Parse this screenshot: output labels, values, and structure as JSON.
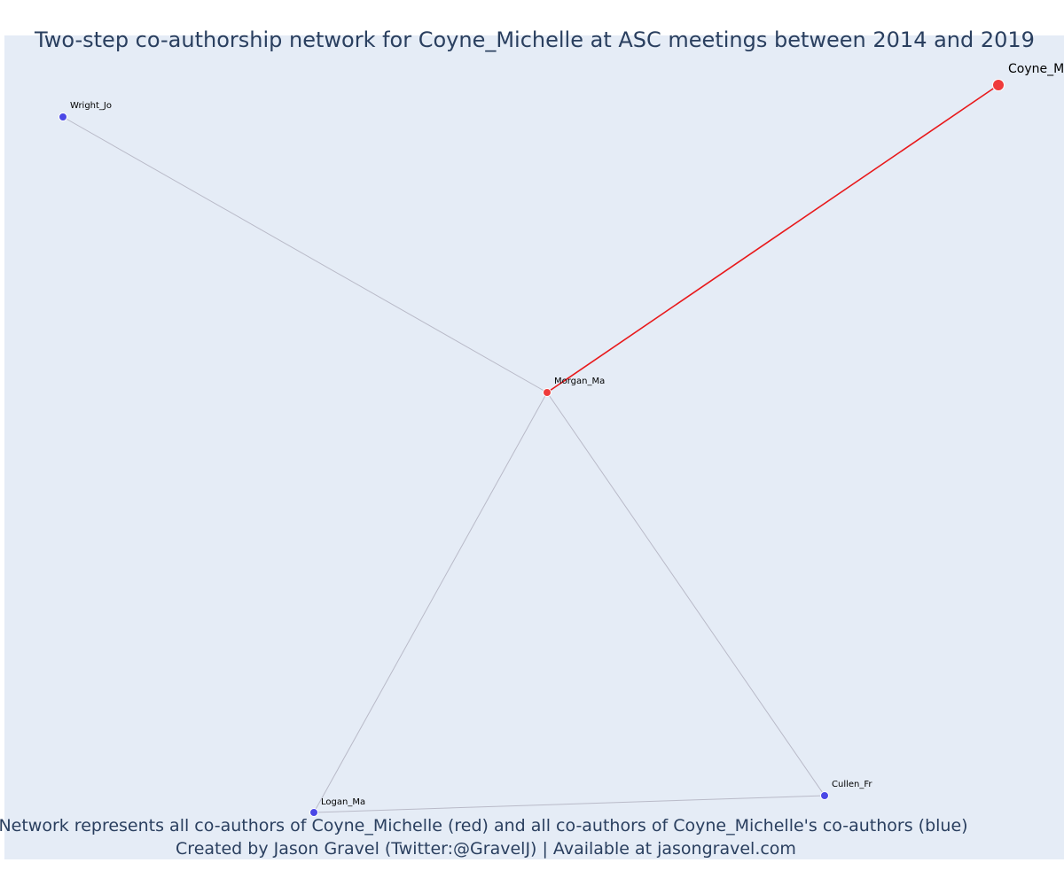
{
  "title": "Two-step co-authorship network for Coyne_Michelle at ASC meetings between 2014 and 2019",
  "caption_line1": "Network represents all co-authors of Coyne_Michelle (red) and all co-authors of Coyne_Michelle's co-authors (blue)",
  "caption_line2": "Created by Jason Gravel (Twitter:@GravelJ) | Available at jasongravel.com",
  "colors": {
    "background": "#e5ecf6",
    "title": "#2a3f5f",
    "red_node": "#ef3b3b",
    "blue_node": "#4a47e6",
    "red_edge": "#e8191b",
    "grey_edge": "#b9bac8"
  },
  "network": {
    "ego": "Coyne_Michelle",
    "nodes": [
      {
        "id": "Coyne_Michelle",
        "label": "Coyne_M",
        "group": "ego"
      },
      {
        "id": "Morgan_Ma",
        "label": "Morgan_Ma",
        "group": "coauthor"
      },
      {
        "id": "Wright_Jo",
        "label": "Wright_Jo",
        "group": "second"
      },
      {
        "id": "Logan_Ma",
        "label": "Logan_Ma",
        "group": "second"
      },
      {
        "id": "Cullen_Fr",
        "label": "Cullen_Fr",
        "group": "second"
      }
    ],
    "edges": [
      {
        "source": "Coyne_Michelle",
        "target": "Morgan_Ma",
        "type": "ego"
      },
      {
        "source": "Morgan_Ma",
        "target": "Wright_Jo",
        "type": "second"
      },
      {
        "source": "Morgan_Ma",
        "target": "Logan_Ma",
        "type": "second"
      },
      {
        "source": "Morgan_Ma",
        "target": "Cullen_Fr",
        "type": "second"
      },
      {
        "source": "Logan_Ma",
        "target": "Cullen_Fr",
        "type": "second"
      }
    ]
  }
}
